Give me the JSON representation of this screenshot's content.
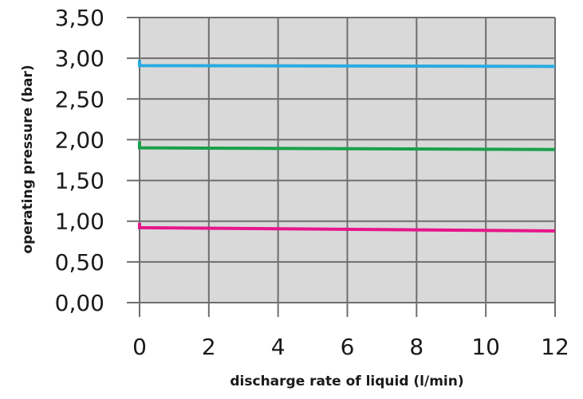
{
  "chart_data": {
    "type": "line",
    "title": "",
    "xlabel": "discharge rate of liquid (l/min)",
    "ylabel": "operating pressure (bar)",
    "xlim": [
      0,
      12
    ],
    "ylim": [
      0,
      3.5
    ],
    "x_ticks": [
      0,
      2,
      4,
      6,
      8,
      10,
      12
    ],
    "x_tick_labels": [
      "0",
      "2",
      "4",
      "6",
      "8",
      "10",
      "12"
    ],
    "y_ticks": [
      0,
      0.5,
      1,
      1.5,
      2,
      2.5,
      3,
      3.5
    ],
    "y_tick_labels": [
      "0,00",
      "0,50",
      "1,00",
      "1,50",
      "2,00",
      "2,50",
      "3,00",
      "3,50"
    ],
    "grid": true,
    "legend": "none",
    "plot_background": "#d9d9d9",
    "grid_color": "#6e6e6e",
    "series": [
      {
        "color": "#29abe2",
        "points": [
          [
            0,
            2.98
          ],
          [
            0,
            2.91
          ],
          [
            12,
            2.9
          ]
        ]
      },
      {
        "color": "#1aa04a",
        "points": [
          [
            0,
            1.98
          ],
          [
            0,
            1.9
          ],
          [
            12,
            1.88
          ]
        ]
      },
      {
        "color": "#e6168a",
        "points": [
          [
            0,
            0.98
          ],
          [
            0,
            0.92
          ],
          [
            12,
            0.88
          ]
        ]
      }
    ]
  }
}
